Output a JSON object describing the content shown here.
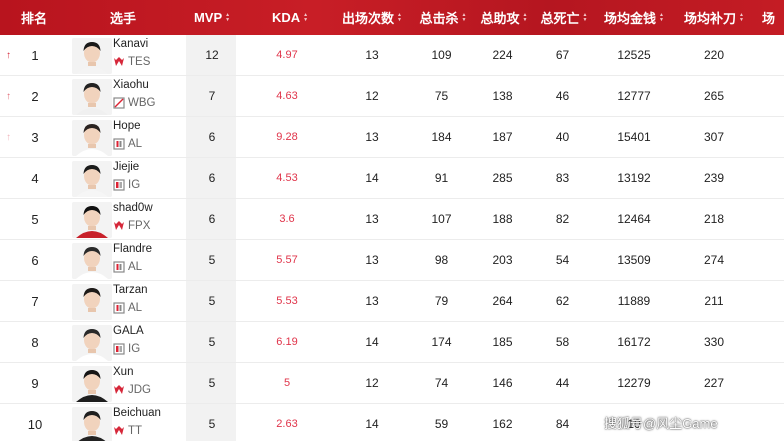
{
  "headers": {
    "rank": "排名",
    "player": "选手",
    "mvp": "MVP",
    "kda": "KDA",
    "appearances": "出场次数",
    "kills": "总击杀",
    "assists": "总助攻",
    "deaths": "总死亡",
    "gold": "场均金钱",
    "cs": "场均补刀",
    "extra": "场"
  },
  "rows": [
    {
      "rank": "1",
      "trend": "up",
      "name": "Kanavi",
      "team": "TES",
      "team_logo": "tes-logo",
      "mvp": "12",
      "kda": "4.97",
      "appearances": "13",
      "kills": "109",
      "assists": "224",
      "deaths": "67",
      "gold": "12525",
      "cs": "220"
    },
    {
      "rank": "2",
      "trend": "up",
      "name": "Xiaohu",
      "team": "WBG",
      "team_logo": "wbg-logo",
      "mvp": "7",
      "kda": "4.63",
      "appearances": "12",
      "kills": "75",
      "assists": "138",
      "deaths": "46",
      "gold": "12777",
      "cs": "265"
    },
    {
      "rank": "3",
      "trend": "up",
      "name": "Hope",
      "team": "AL",
      "team_logo": "al-logo",
      "mvp": "6",
      "kda": "9.28",
      "appearances": "13",
      "kills": "184",
      "assists": "187",
      "deaths": "40",
      "gold": "15401",
      "cs": "307"
    },
    {
      "rank": "4",
      "trend": "none",
      "name": "Jiejie",
      "team": "IG",
      "team_logo": "ig-logo",
      "mvp": "6",
      "kda": "4.53",
      "appearances": "14",
      "kills": "91",
      "assists": "285",
      "deaths": "83",
      "gold": "13192",
      "cs": "239"
    },
    {
      "rank": "5",
      "trend": "none",
      "name": "shad0w",
      "team": "FPX",
      "team_logo": "fpx-logo",
      "mvp": "6",
      "kda": "3.6",
      "appearances": "13",
      "kills": "107",
      "assists": "188",
      "deaths": "82",
      "gold": "12464",
      "cs": "218"
    },
    {
      "rank": "6",
      "trend": "none",
      "name": "Flandre",
      "team": "AL",
      "team_logo": "al-logo",
      "mvp": "5",
      "kda": "5.57",
      "appearances": "13",
      "kills": "98",
      "assists": "203",
      "deaths": "54",
      "gold": "13509",
      "cs": "274"
    },
    {
      "rank": "7",
      "trend": "none",
      "name": "Tarzan",
      "team": "AL",
      "team_logo": "al-logo",
      "mvp": "5",
      "kda": "5.53",
      "appearances": "13",
      "kills": "79",
      "assists": "264",
      "deaths": "62",
      "gold": "11889",
      "cs": "211"
    },
    {
      "rank": "8",
      "trend": "none",
      "name": "GALA",
      "team": "IG",
      "team_logo": "ig-logo",
      "mvp": "5",
      "kda": "6.19",
      "appearances": "14",
      "kills": "174",
      "assists": "185",
      "deaths": "58",
      "gold": "16172",
      "cs": "330"
    },
    {
      "rank": "9",
      "trend": "none",
      "name": "Xun",
      "team": "JDG",
      "team_logo": "jdg-logo",
      "mvp": "5",
      "kda": "5",
      "appearances": "12",
      "kills": "74",
      "assists": "146",
      "deaths": "44",
      "gold": "12279",
      "cs": "227"
    },
    {
      "rank": "10",
      "trend": "none",
      "name": "Beichuan",
      "team": "TT",
      "team_logo": "tt-logo",
      "mvp": "5",
      "kda": "2.63",
      "appearances": "14",
      "kills": "59",
      "assists": "162",
      "deaths": "84",
      "gold": "10",
      "cs": ""
    }
  ],
  "watermark": "搜狐号@风尘Game",
  "colors": {
    "header_bg": "#c01a22",
    "kda": "#e0344a",
    "trend_up": "#d6283a",
    "mvp_col_bg": "#f2f2f2"
  }
}
